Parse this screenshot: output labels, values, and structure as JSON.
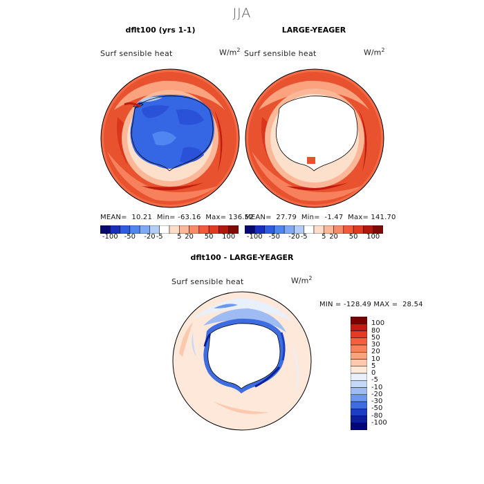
{
  "season": "JJA",
  "panels": {
    "left": {
      "title": "dflt100 (yrs 1-1)",
      "variable": "Surf sensible heat",
      "units_base": "W/m",
      "units_exp": "2",
      "stats": {
        "mean_label": "MEAN=",
        "mean": "10.21",
        "min_label": "Min=",
        "min": "-63.16",
        "max_label": "Max=",
        "max": "136.52"
      }
    },
    "right": {
      "title": "LARGE-YEAGER",
      "variable": "Surf sensible heat",
      "units_base": "W/m",
      "units_exp": "2",
      "stats": {
        "mean_label": "MEAN=",
        "mean": "27.79",
        "min_label": "Min=",
        "min": "-1.47",
        "max_label": "Max=",
        "max": "141.70"
      }
    },
    "diff": {
      "title": "dflt100 - LARGE-YEAGER",
      "variable": "Surf sensible heat",
      "units_base": "W/m",
      "units_exp": "2",
      "stats": {
        "min_label": "MIN =",
        "min": "-128.49",
        "max_label": "MAX =",
        "max": "28.54"
      }
    }
  },
  "colorbar_horizontal": {
    "tick_labels": [
      "-100",
      "-50",
      "-20",
      "-5",
      "5",
      "20",
      "50",
      "100"
    ],
    "colors": [
      "#08086e",
      "#1a2ebe",
      "#2f5ce0",
      "#4f86ef",
      "#7fa9f2",
      "#b4cdf6",
      "#ffffff",
      "#fddcc8",
      "#fbb898",
      "#f88b67",
      "#f35a3b",
      "#e03a21",
      "#b3180c",
      "#7f0a05"
    ]
  },
  "colorbar_vertical": {
    "levels": [
      "100",
      "80",
      "50",
      "30",
      "20",
      "10",
      "5",
      "0",
      "-5",
      "-10",
      "-20",
      "-30",
      "-50",
      "-80",
      "-100"
    ],
    "colors": [
      "#7a0000",
      "#c21c10",
      "#e63a25",
      "#f2603f",
      "#f7805d",
      "#fba27f",
      "#fdc9ae",
      "#fde8da",
      "#e8f0fb",
      "#c6d8f7",
      "#9ebcf3",
      "#6d97ec",
      "#3d6de0",
      "#1d3ec4",
      "#0a1f9a",
      "#05057a"
    ]
  },
  "icons": {
    "left_map": "polar-map-icon",
    "right_map": "polar-map-icon",
    "diff_map": "polar-map-icon"
  }
}
